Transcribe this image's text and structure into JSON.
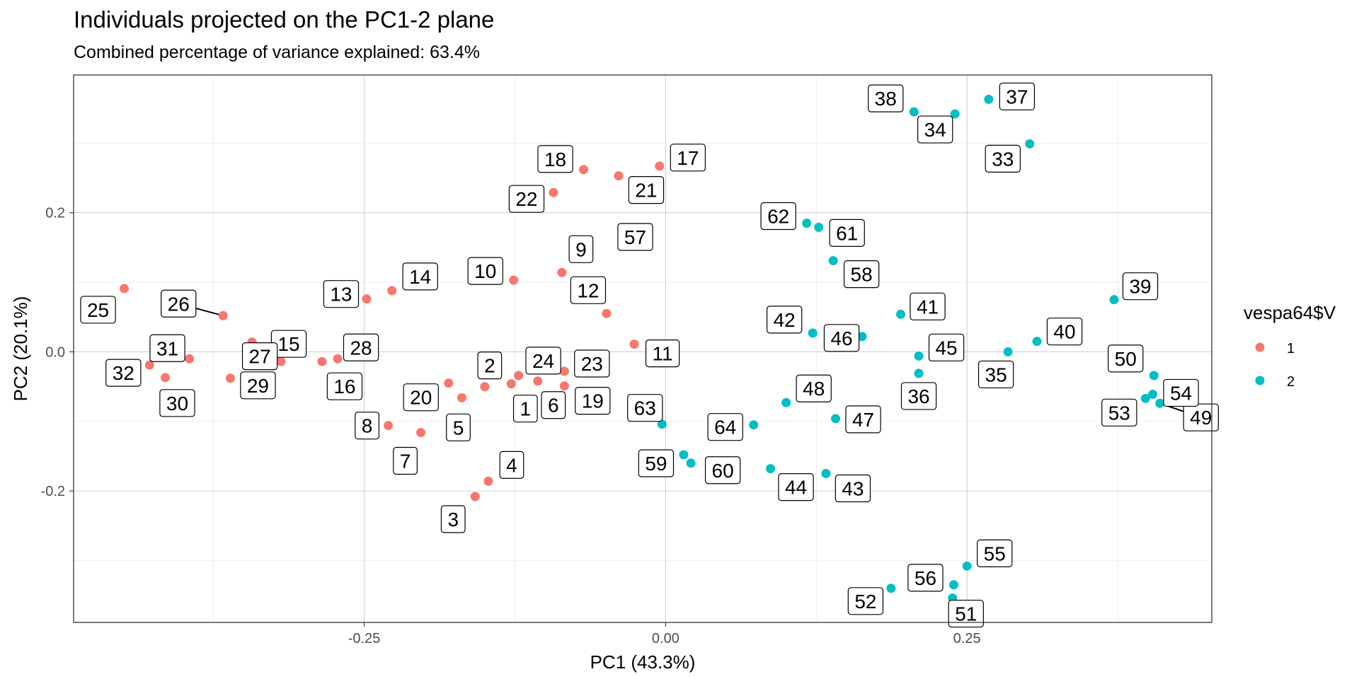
{
  "chart_data": {
    "type": "scatter",
    "title": "Individuals projected on the PC1-2 plane",
    "subtitle": "Combined percentage of variance explained: 63.4%",
    "xlabel": "PC1 (43.3%)",
    "ylabel": "PC2 (20.1%)",
    "xlim": [
      -0.491,
      0.453
    ],
    "ylim": [
      -0.389,
      0.398
    ],
    "xticks": [
      -0.25,
      0.0,
      0.25
    ],
    "xtick_labels": [
      "-0.25",
      "0.00",
      "0.25"
    ],
    "yticks": [
      -0.2,
      0.0,
      0.2
    ],
    "ytick_labels": [
      "-0.2",
      "0.0",
      "0.2"
    ],
    "grid": true,
    "legend": {
      "title": "vespa64$V",
      "position": "right"
    },
    "series": [
      {
        "name": "1",
        "color": "#F8766D",
        "points": [
          {
            "label": "1",
            "x": -0.128,
            "y": -0.046
          },
          {
            "label": "2",
            "x": -0.15,
            "y": -0.05
          },
          {
            "label": "3",
            "x": -0.158,
            "y": -0.208
          },
          {
            "label": "4",
            "x": -0.147,
            "y": -0.186
          },
          {
            "label": "5",
            "x": -0.169,
            "y": -0.066
          },
          {
            "label": "6",
            "x": -0.106,
            "y": -0.042
          },
          {
            "label": "7",
            "x": -0.203,
            "y": -0.116
          },
          {
            "label": "8",
            "x": -0.23,
            "y": -0.106
          },
          {
            "label": "9",
            "x": -0.086,
            "y": 0.114
          },
          {
            "label": "10",
            "x": -0.126,
            "y": 0.103
          },
          {
            "label": "11",
            "x": -0.026,
            "y": 0.011
          },
          {
            "label": "12",
            "x": -0.049,
            "y": 0.055
          },
          {
            "label": "13",
            "x": -0.248,
            "y": 0.076
          },
          {
            "label": "14",
            "x": -0.227,
            "y": 0.088
          },
          {
            "label": "15",
            "x": -0.319,
            "y": -0.014
          },
          {
            "label": "16",
            "x": -0.285,
            "y": -0.014
          },
          {
            "label": "17",
            "x": -0.005,
            "y": 0.267
          },
          {
            "label": "18",
            "x": -0.068,
            "y": 0.262
          },
          {
            "label": "19",
            "x": -0.084,
            "y": -0.049
          },
          {
            "label": "20",
            "x": -0.18,
            "y": -0.045
          },
          {
            "label": "21",
            "x": -0.039,
            "y": 0.253
          },
          {
            "label": "22",
            "x": -0.093,
            "y": 0.229
          },
          {
            "label": "23",
            "x": -0.084,
            "y": -0.028
          },
          {
            "label": "24",
            "x": -0.122,
            "y": -0.034
          },
          {
            "label": "25",
            "x": -0.449,
            "y": 0.091
          },
          {
            "label": "26",
            "x": -0.367,
            "y": 0.052
          },
          {
            "label": "27",
            "x": -0.343,
            "y": 0.014
          },
          {
            "label": "28",
            "x": -0.272,
            "y": -0.01
          },
          {
            "label": "29",
            "x": -0.361,
            "y": -0.038
          },
          {
            "label": "30",
            "x": -0.415,
            "y": -0.037
          },
          {
            "label": "31",
            "x": -0.395,
            "y": -0.01
          },
          {
            "label": "32",
            "x": -0.428,
            "y": -0.019
          }
        ]
      },
      {
        "name": "2",
        "color": "#00BFC4",
        "points": [
          {
            "label": "33",
            "x": 0.302,
            "y": 0.299
          },
          {
            "label": "34",
            "x": 0.24,
            "y": 0.342
          },
          {
            "label": "35",
            "x": 0.284,
            "y": 0.0
          },
          {
            "label": "36",
            "x": 0.21,
            "y": -0.031
          },
          {
            "label": "37",
            "x": 0.268,
            "y": 0.363
          },
          {
            "label": "38",
            "x": 0.206,
            "y": 0.345
          },
          {
            "label": "39",
            "x": 0.372,
            "y": 0.075
          },
          {
            "label": "40",
            "x": 0.308,
            "y": 0.015
          },
          {
            "label": "41",
            "x": 0.195,
            "y": 0.054
          },
          {
            "label": "42",
            "x": 0.122,
            "y": 0.027
          },
          {
            "label": "43",
            "x": 0.133,
            "y": -0.175
          },
          {
            "label": "44",
            "x": 0.087,
            "y": -0.168
          },
          {
            "label": "45",
            "x": 0.21,
            "y": -0.006
          },
          {
            "label": "46",
            "x": 0.163,
            "y": 0.022
          },
          {
            "label": "47",
            "x": 0.141,
            "y": -0.096
          },
          {
            "label": "48",
            "x": 0.1,
            "y": -0.073
          },
          {
            "label": "49",
            "x": 0.41,
            "y": -0.074
          },
          {
            "label": "50",
            "x": 0.405,
            "y": -0.034
          },
          {
            "label": "51",
            "x": 0.238,
            "y": -0.354
          },
          {
            "label": "52",
            "x": 0.187,
            "y": -0.34
          },
          {
            "label": "53",
            "x": 0.398,
            "y": -0.067
          },
          {
            "label": "54",
            "x": 0.404,
            "y": -0.061
          },
          {
            "label": "55",
            "x": 0.25,
            "y": -0.308
          },
          {
            "label": "56",
            "x": 0.239,
            "y": -0.335
          },
          {
            "label": "57",
            "x": -0.024,
            "y": 0.155
          },
          {
            "label": "58",
            "x": 0.139,
            "y": 0.131
          },
          {
            "label": "59",
            "x": 0.015,
            "y": -0.148
          },
          {
            "label": "60",
            "x": 0.021,
            "y": -0.16
          },
          {
            "label": "61",
            "x": 0.127,
            "y": 0.179
          },
          {
            "label": "62",
            "x": 0.117,
            "y": 0.185
          },
          {
            "label": "63",
            "x": -0.003,
            "y": -0.104
          },
          {
            "label": "64",
            "x": 0.073,
            "y": -0.105
          }
        ]
      }
    ]
  }
}
